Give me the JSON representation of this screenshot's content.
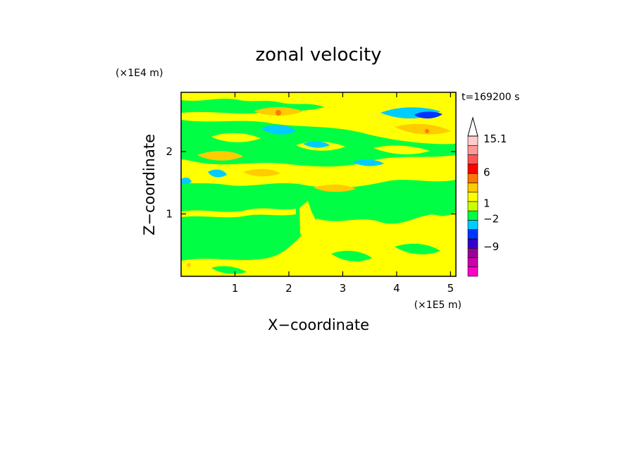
{
  "chart_data": {
    "type": "heatmap",
    "title": "zonal velocity",
    "xlabel": "X−coordinate",
    "ylabel": "Z−coordinate",
    "x_unit": "(×1E5 m)",
    "y_unit": "(×1E4 m)",
    "time_label": "t=169200 s",
    "xlim": [
      0,
      5.1
    ],
    "ylim": [
      0,
      2.95
    ],
    "x_ticks": [
      1,
      2,
      3,
      4,
      5
    ],
    "x_tick_labels": [
      "1",
      "2",
      "3",
      "4",
      "5"
    ],
    "y_ticks": [
      1,
      2
    ],
    "y_tick_labels": [
      "1",
      "2"
    ],
    "background_level_color": "#00ff44",
    "colorbar": {
      "levels": [
        {
          "color": "#ff00cc"
        },
        {
          "color": "#cc00aa"
        },
        {
          "color": "#990099"
        },
        {
          "color": "#3300cc"
        },
        {
          "color": "#0033ff"
        },
        {
          "color": "#00ccff"
        },
        {
          "color": "#00ff44"
        },
        {
          "color": "#ccff00"
        },
        {
          "color": "#ffff00"
        },
        {
          "color": "#ffcc00"
        },
        {
          "color": "#ff7700"
        },
        {
          "color": "#ff0000"
        },
        {
          "color": "#ff5555"
        },
        {
          "color": "#ff9999"
        },
        {
          "color": "#ffcccc"
        }
      ],
      "labels": [
        {
          "text": "15.1",
          "value": 15.1
        },
        {
          "text": "6",
          "value": 6
        },
        {
          "text": "1",
          "value": 1
        },
        {
          "text": "−2",
          "value": -2
        },
        {
          "text": "−9",
          "value": -9
        }
      ]
    },
    "regions": [
      {
        "level": "yellow",
        "color": "#ffff00",
        "x_range": [
          0,
          5.1
        ],
        "z_range": [
          0,
          0.35
        ],
        "note": "lower yellow band"
      },
      {
        "level": "yellow",
        "color": "#ffff00",
        "x_range": [
          2.0,
          5.1
        ],
        "z_range": [
          0.1,
          0.8
        ],
        "note": "yellow plume region"
      },
      {
        "level": "yellow",
        "color": "#ffff00",
        "x_range": [
          0,
          5.1
        ],
        "z_range": [
          1.3,
          2.95
        ],
        "note": "upper yellow layer"
      },
      {
        "level": "orange",
        "color": "#ffcc00",
        "x_range": [
          1.0,
          2.0
        ],
        "z_range": [
          2.4,
          2.7
        ]
      },
      {
        "level": "orange",
        "color": "#ffcc00",
        "x_range": [
          0.3,
          1.1
        ],
        "z_range": [
          1.8,
          2.0
        ]
      },
      {
        "level": "orange",
        "color": "#ffcc00",
        "x_range": [
          4.0,
          5.0
        ],
        "z_range": [
          2.1,
          2.4
        ]
      },
      {
        "level": "cyan",
        "color": "#00ccff",
        "x_range": [
          3.7,
          4.8
        ],
        "z_range": [
          2.45,
          2.7
        ]
      },
      {
        "level": "cyan",
        "color": "#00ccff",
        "x_range": [
          1.5,
          2.2
        ],
        "z_range": [
          2.25,
          2.4
        ]
      },
      {
        "level": "blue",
        "color": "#0033ff",
        "x_range": [
          4.35,
          4.65
        ],
        "z_range": [
          2.5,
          2.6
        ]
      }
    ]
  }
}
